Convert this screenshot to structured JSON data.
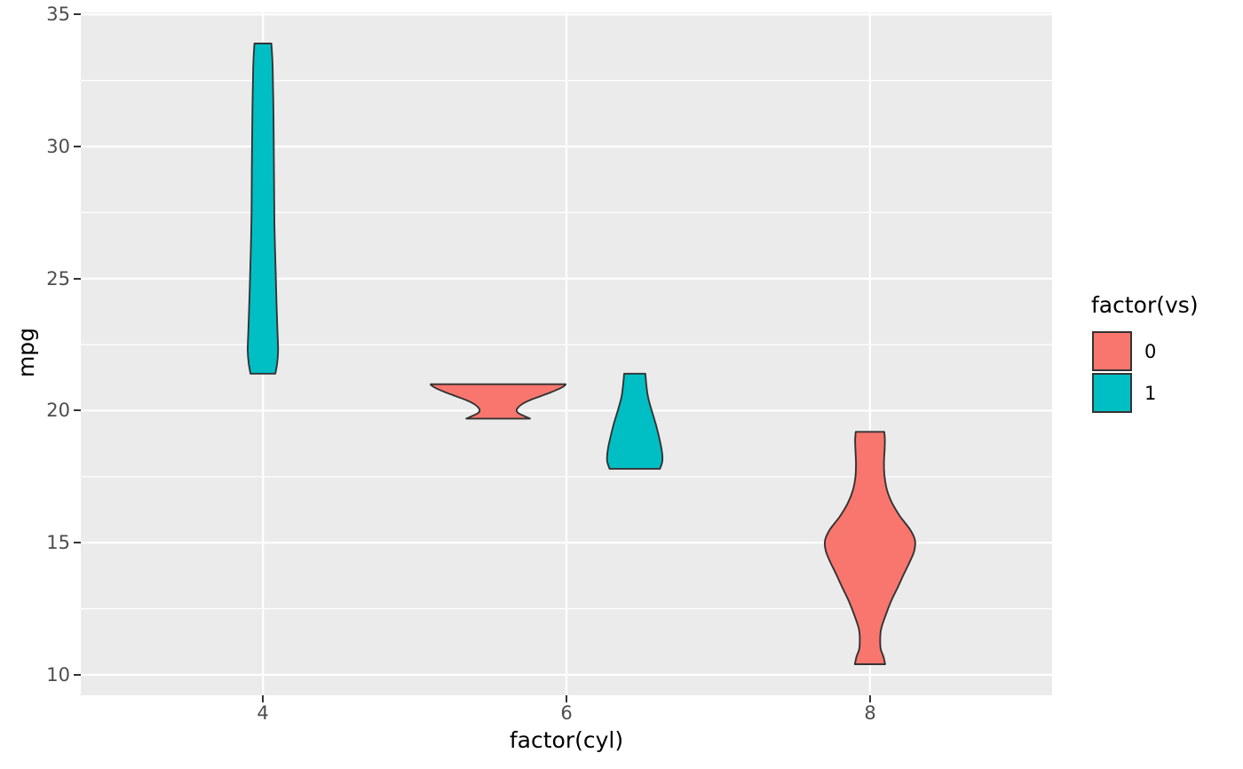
{
  "figure": {
    "background": "#FFFFFF",
    "panel_background": "#EBEBEB",
    "grid_color": "#FFFFFF",
    "violin_outline_color": "#333333",
    "tick_color": "#333333",
    "tick_label_color": "#4D4D4D"
  },
  "chart_data": {
    "type": "violin",
    "title": "",
    "xlabel": "factor(cyl)",
    "ylabel": "mpg",
    "x_categories": [
      "4",
      "6",
      "8"
    ],
    "x_positions": [
      1,
      2,
      3
    ],
    "xlim_units": [
      0.4,
      3.6
    ],
    "ylim": [
      9.225,
      35.075
    ],
    "y_breaks": [
      10,
      15,
      20,
      25,
      30,
      35
    ],
    "y_minor_breaks": [
      12.5,
      17.5,
      22.5,
      27.5,
      32.5
    ],
    "grid": true,
    "legend": {
      "title": "factor(vs)",
      "position": "right",
      "entries": [
        {
          "label": "0",
          "color": "#F8766D"
        },
        {
          "label": "1",
          "color": "#00BFC4"
        }
      ]
    },
    "violins": [
      {
        "group": "cyl=4, vs=1",
        "x_category": "4",
        "vs": "1",
        "fill": "#00BFC4",
        "x_center_units": 1.0,
        "mpg_min": 21.4,
        "mpg_max": 33.9,
        "profile_mpg_halfwidth": [
          [
            33.9,
            0.028
          ],
          [
            33.0,
            0.032
          ],
          [
            31.0,
            0.035
          ],
          [
            29.0,
            0.0365
          ],
          [
            27.0,
            0.038
          ],
          [
            25.0,
            0.0425
          ],
          [
            24.0,
            0.045
          ],
          [
            23.0,
            0.048
          ],
          [
            22.3,
            0.05
          ],
          [
            21.8,
            0.047
          ],
          [
            21.4,
            0.041
          ]
        ]
      },
      {
        "group": "cyl=6, vs=0",
        "x_category": "6",
        "vs": "0",
        "fill": "#F8766D",
        "x_center_units": 1.775,
        "mpg_min": 19.7,
        "mpg_max": 21.0,
        "profile_mpg_halfwidth": [
          [
            21.0,
            0.2225
          ],
          [
            20.95,
            0.219
          ],
          [
            20.85,
            0.205
          ],
          [
            20.7,
            0.175
          ],
          [
            20.55,
            0.14
          ],
          [
            20.4,
            0.105
          ],
          [
            20.25,
            0.079
          ],
          [
            20.1,
            0.064
          ],
          [
            20.0,
            0.061
          ],
          [
            19.9,
            0.067
          ],
          [
            19.8,
            0.085
          ],
          [
            19.7,
            0.105
          ]
        ]
      },
      {
        "group": "cyl=6, vs=1",
        "x_category": "6",
        "vs": "1",
        "fill": "#00BFC4",
        "x_center_units": 2.225,
        "mpg_min": 17.8,
        "mpg_max": 21.4,
        "profile_mpg_halfwidth": [
          [
            21.4,
            0.035
          ],
          [
            21.0,
            0.038
          ],
          [
            20.5,
            0.044
          ],
          [
            20.0,
            0.056
          ],
          [
            19.5,
            0.069
          ],
          [
            19.0,
            0.08
          ],
          [
            18.5,
            0.089
          ],
          [
            18.1,
            0.091
          ],
          [
            17.8,
            0.083
          ]
        ]
      },
      {
        "group": "cyl=8, vs=0",
        "x_category": "8",
        "vs": "0",
        "fill": "#F8766D",
        "x_center_units": 3.0,
        "mpg_min": 10.4,
        "mpg_max": 19.2,
        "profile_mpg_halfwidth": [
          [
            19.2,
            0.047
          ],
          [
            18.9,
            0.049
          ],
          [
            18.5,
            0.048
          ],
          [
            18.0,
            0.046
          ],
          [
            17.5,
            0.048
          ],
          [
            17.0,
            0.056
          ],
          [
            16.5,
            0.073
          ],
          [
            16.0,
            0.099
          ],
          [
            15.5,
            0.132
          ],
          [
            15.1,
            0.148
          ],
          [
            14.7,
            0.146
          ],
          [
            14.3,
            0.132
          ],
          [
            13.8,
            0.111
          ],
          [
            13.3,
            0.091
          ],
          [
            12.8,
            0.07
          ],
          [
            12.3,
            0.053
          ],
          [
            11.8,
            0.038
          ],
          [
            11.5,
            0.034
          ],
          [
            11.0,
            0.035
          ],
          [
            10.7,
            0.044
          ],
          [
            10.4,
            0.05
          ]
        ]
      }
    ]
  }
}
